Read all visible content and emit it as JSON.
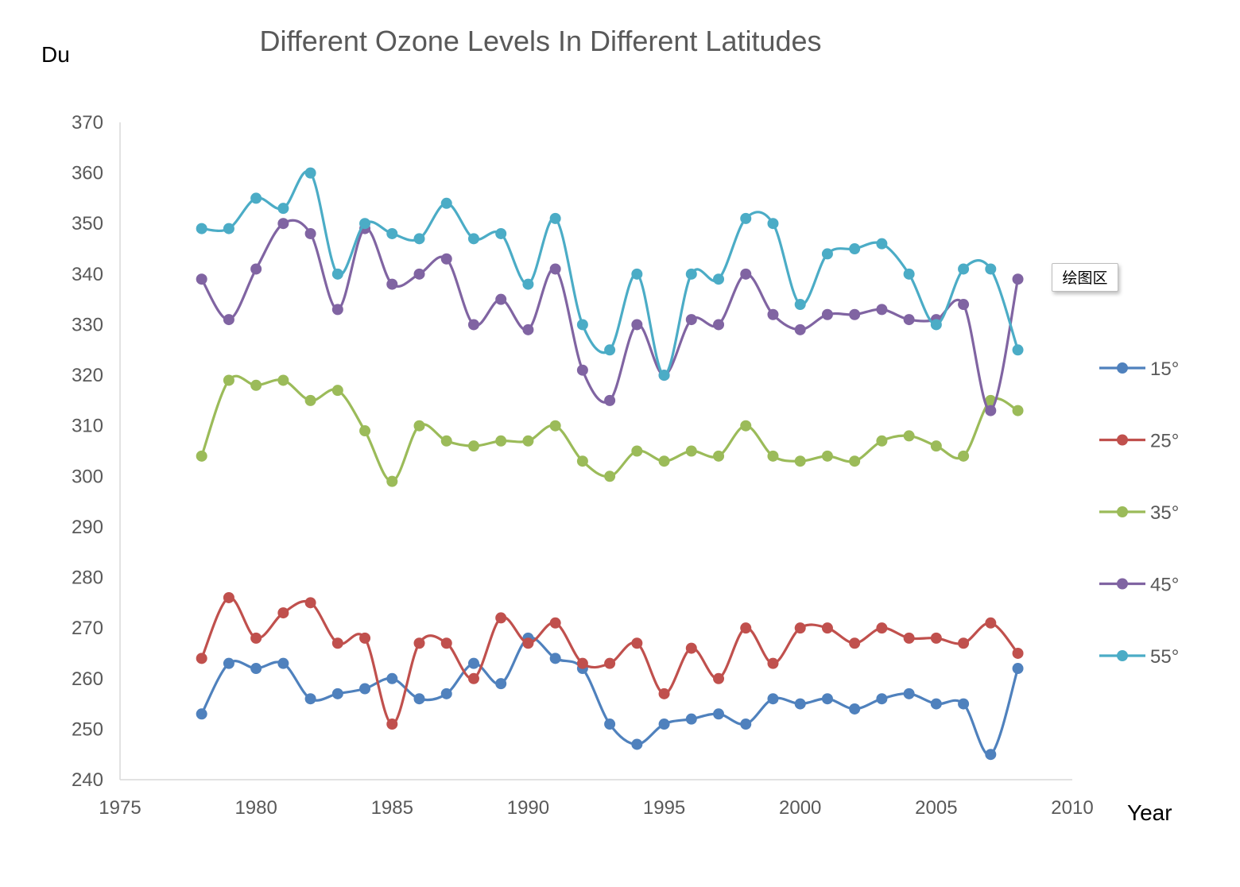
{
  "chart_data": {
    "type": "line",
    "title": "Different Ozone Levels In Different Latitudes",
    "xlabel": "Year",
    "ylabel": "Du",
    "xlim": [
      1975,
      2010
    ],
    "ylim": [
      240,
      370
    ],
    "xticks": [
      1975,
      1980,
      1985,
      1990,
      1995,
      2000,
      2005,
      2010
    ],
    "yticks": [
      240,
      250,
      260,
      270,
      280,
      290,
      300,
      310,
      320,
      330,
      340,
      350,
      360,
      370
    ],
    "grid": false,
    "smooth": true,
    "markers": "circle",
    "legend_position": "right",
    "x": [
      1978,
      1979,
      1980,
      1981,
      1982,
      1983,
      1984,
      1985,
      1986,
      1987,
      1988,
      1989,
      1990,
      1991,
      1992,
      1993,
      1994,
      1995,
      1996,
      1997,
      1998,
      1999,
      2000,
      2001,
      2002,
      2003,
      2004,
      2005,
      2006,
      2007,
      2008
    ],
    "series": [
      {
        "name": "15°",
        "color": "#4F81BD",
        "values": [
          253,
          263,
          262,
          263,
          256,
          257,
          258,
          260,
          256,
          257,
          263,
          259,
          268,
          264,
          262,
          251,
          247,
          251,
          252,
          253,
          251,
          256,
          255,
          256,
          254,
          256,
          257,
          255,
          255,
          245,
          262
        ]
      },
      {
        "name": "25°",
        "color": "#C0504D",
        "values": [
          264,
          276,
          268,
          273,
          275,
          267,
          268,
          251,
          267,
          267,
          260,
          272,
          267,
          271,
          263,
          263,
          267,
          257,
          266,
          260,
          270,
          263,
          270,
          270,
          267,
          270,
          268,
          268,
          267,
          271,
          265
        ]
      },
      {
        "name": "35°",
        "color": "#9BBB59",
        "values": [
          304,
          319,
          318,
          319,
          315,
          317,
          309,
          299,
          310,
          307,
          306,
          307,
          307,
          310,
          303,
          300,
          305,
          303,
          305,
          304,
          310,
          304,
          303,
          304,
          303,
          307,
          308,
          306,
          304,
          315,
          313
        ]
      },
      {
        "name": "45°",
        "color": "#8064A2",
        "values": [
          339,
          331,
          341,
          350,
          348,
          333,
          349,
          338,
          340,
          343,
          330,
          335,
          329,
          341,
          321,
          315,
          330,
          320,
          331,
          330,
          340,
          332,
          329,
          332,
          332,
          333,
          331,
          331,
          334,
          313,
          339
        ]
      },
      {
        "name": "55°",
        "color": "#4BACC6",
        "values": [
          349,
          349,
          355,
          353,
          360,
          340,
          350,
          348,
          347,
          354,
          347,
          348,
          338,
          351,
          330,
          325,
          340,
          320,
          340,
          339,
          351,
          350,
          334,
          344,
          345,
          346,
          340,
          330,
          341,
          341,
          325
        ]
      }
    ]
  },
  "tooltip": {
    "text": "绘图区"
  }
}
